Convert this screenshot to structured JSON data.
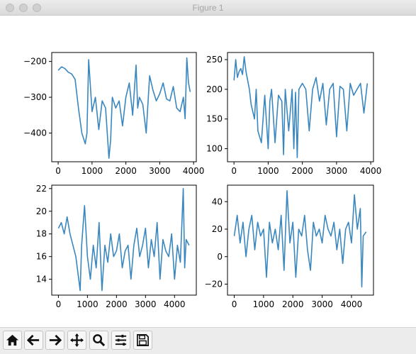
{
  "window": {
    "title": "Figure 1"
  },
  "toolbar": {
    "buttons": [
      {
        "icon": "home-icon"
      },
      {
        "icon": "back-arrow-icon"
      },
      {
        "icon": "forward-arrow-icon"
      },
      {
        "icon": "pan-icon"
      },
      {
        "icon": "zoom-icon"
      },
      {
        "icon": "configure-subplots-icon"
      },
      {
        "icon": "save-icon"
      }
    ]
  },
  "line_color": "#3a87bf",
  "chart_data": [
    {
      "type": "line",
      "title": "",
      "xlabel": "",
      "ylabel": "",
      "xlim": [
        -190,
        4080
      ],
      "ylim": [
        -480,
        -175
      ],
      "xticks": [
        0,
        1000,
        2000,
        3000,
        4000
      ],
      "xtick_labels": [
        "0",
        "1000",
        "2000",
        "3000",
        "4000"
      ],
      "yticks": [
        -200,
        -300,
        -400
      ],
      "ytick_labels": [
        "−200",
        "−300",
        "−400"
      ],
      "series": [
        {
          "x": [
            0,
            100,
            200,
            300,
            400,
            500,
            600,
            700,
            800,
            850,
            900,
            1000,
            1100,
            1200,
            1300,
            1400,
            1500,
            1550,
            1600,
            1700,
            1800,
            1900,
            2000,
            2100,
            2200,
            2300,
            2350,
            2400,
            2500,
            2600,
            2700,
            2800,
            2900,
            3000,
            3100,
            3200,
            3300,
            3400,
            3500,
            3600,
            3700,
            3750,
            3800,
            3850,
            3900
          ],
          "y": [
            -225,
            -215,
            -220,
            -230,
            -235,
            -250,
            -330,
            -400,
            -430,
            -400,
            -195,
            -340,
            -300,
            -390,
            -310,
            -330,
            -470,
            -420,
            -300,
            -330,
            -310,
            -380,
            -300,
            -260,
            -350,
            -210,
            -330,
            -300,
            -320,
            -400,
            -240,
            -280,
            -310,
            -290,
            -260,
            -305,
            -310,
            -270,
            -330,
            -340,
            -300,
            -360,
            -190,
            -260,
            -285
          ]
        }
      ]
    },
    {
      "type": "line",
      "title": "",
      "xlabel": "",
      "ylabel": "",
      "xlim": [
        -190,
        4080
      ],
      "ylim": [
        78,
        262
      ],
      "xticks": [
        0,
        1000,
        2000,
        3000,
        4000
      ],
      "xtick_labels": [
        "0",
        "1000",
        "2000",
        "3000",
        "4000"
      ],
      "yticks": [
        250,
        200,
        150,
        100
      ],
      "ytick_labels": [
        "250",
        "200",
        "150",
        "100"
      ],
      "series": [
        {
          "x": [
            0,
            50,
            100,
            150,
            200,
            250,
            300,
            350,
            400,
            450,
            500,
            600,
            650,
            700,
            800,
            900,
            1000,
            1050,
            1100,
            1200,
            1300,
            1400,
            1450,
            1500,
            1600,
            1700,
            1750,
            1800,
            1850,
            1900,
            1950,
            2000,
            2100,
            2200,
            2300,
            2400,
            2500,
            2600,
            2700,
            2800,
            2900,
            3000,
            3100,
            3200,
            3300,
            3400,
            3500,
            3600,
            3700,
            3800,
            3900
          ],
          "y": [
            215,
            250,
            220,
            230,
            235,
            225,
            255,
            230,
            215,
            200,
            175,
            150,
            200,
            130,
            110,
            190,
            100,
            180,
            200,
            110,
            190,
            180,
            90,
            200,
            130,
            200,
            100,
            195,
            85,
            200,
            205,
            210,
            200,
            130,
            200,
            220,
            180,
            210,
            140,
            200,
            210,
            120,
            205,
            200,
            130,
            210,
            190,
            200,
            210,
            160,
            210
          ]
        }
      ]
    },
    {
      "type": "line",
      "title": "",
      "xlabel": "",
      "ylabel": "",
      "xlim": [
        -230,
        4750
      ],
      "ylim": [
        12.6,
        22.3
      ],
      "xticks": [
        0,
        1000,
        2000,
        3000,
        4000
      ],
      "xtick_labels": [
        "0",
        "1000",
        "2000",
        "3000",
        "4000"
      ],
      "yticks": [
        22,
        20,
        18,
        16,
        14
      ],
      "ytick_labels": [
        "22",
        "20",
        "18",
        "16",
        "14"
      ],
      "series": [
        {
          "x": [
            0,
            100,
            200,
            300,
            400,
            500,
            600,
            700,
            750,
            800,
            900,
            1000,
            1100,
            1200,
            1300,
            1400,
            1500,
            1600,
            1700,
            1800,
            1900,
            2000,
            2100,
            2200,
            2300,
            2400,
            2500,
            2600,
            2700,
            2800,
            2900,
            3000,
            3100,
            3200,
            3300,
            3400,
            3500,
            3600,
            3700,
            3800,
            3900,
            4000,
            4100,
            4200,
            4300,
            4350,
            4400,
            4500
          ],
          "y": [
            18.5,
            19,
            18,
            19.5,
            18,
            17,
            16,
            14,
            13,
            17,
            20.5,
            16,
            14,
            17,
            15,
            19,
            13,
            17,
            15.5,
            18,
            16,
            16.5,
            18,
            15,
            16.5,
            17,
            14,
            17,
            18.5,
            16,
            17,
            18.5,
            15,
            17.5,
            16,
            19,
            14,
            17.5,
            16.5,
            16,
            18,
            14,
            17,
            15.5,
            22,
            15,
            17.5,
            17
          ]
        }
      ]
    },
    {
      "type": "line",
      "title": "",
      "xlabel": "",
      "ylabel": "",
      "xlim": [
        -230,
        4750
      ],
      "ylim": [
        -28,
        52
      ],
      "xticks": [
        0,
        1000,
        2000,
        3000,
        4000
      ],
      "xtick_labels": [
        "0",
        "1000",
        "2000",
        "3000",
        "4000"
      ],
      "yticks": [
        40,
        20,
        0,
        -20
      ],
      "ytick_labels": [
        "40",
        "20",
        "0",
        "−20"
      ],
      "series": [
        {
          "x": [
            0,
            100,
            200,
            300,
            400,
            500,
            600,
            700,
            800,
            900,
            1000,
            1100,
            1200,
            1300,
            1400,
            1500,
            1600,
            1700,
            1800,
            1900,
            2000,
            2100,
            2200,
            2300,
            2400,
            2500,
            2600,
            2700,
            2800,
            2900,
            3000,
            3100,
            3200,
            3300,
            3400,
            3500,
            3600,
            3700,
            3800,
            3900,
            4000,
            4100,
            4200,
            4300,
            4350,
            4400,
            4500
          ],
          "y": [
            15,
            30,
            10,
            25,
            0,
            20,
            30,
            5,
            25,
            15,
            20,
            -15,
            25,
            10,
            20,
            5,
            30,
            -10,
            48,
            10,
            25,
            -15,
            20,
            15,
            30,
            5,
            -10,
            25,
            15,
            20,
            10,
            30,
            20,
            15,
            25,
            5,
            20,
            -5,
            20,
            25,
            10,
            45,
            20,
            35,
            -22,
            15,
            18
          ]
        }
      ]
    }
  ]
}
